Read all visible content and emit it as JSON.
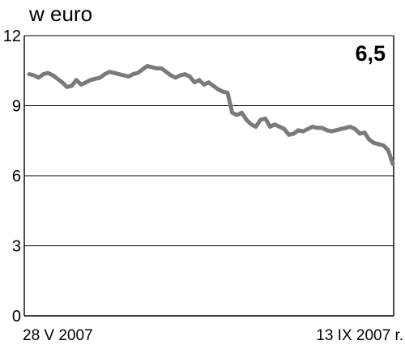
{
  "chart_data": {
    "type": "line",
    "unit_label": "w euro",
    "last_value_label": "6,5",
    "x_start_label": "28 V 2007",
    "x_end_label": "13 IX 2007 r.",
    "ylim": [
      0,
      12
    ],
    "y_ticks": [
      {
        "value": 12,
        "label": "12"
      },
      {
        "value": 9,
        "label": "9"
      },
      {
        "value": 6,
        "label": "6"
      },
      {
        "value": 3,
        "label": "3"
      },
      {
        "value": 0,
        "label": "0"
      }
    ],
    "grid": true,
    "series": [
      {
        "color": "#7a7a7a",
        "values": [
          10.35,
          10.3,
          10.2,
          10.35,
          10.4,
          10.3,
          10.15,
          10.0,
          9.8,
          9.85,
          10.1,
          9.9,
          10.0,
          10.1,
          10.15,
          10.2,
          10.35,
          10.45,
          10.4,
          10.35,
          10.3,
          10.25,
          10.35,
          10.4,
          10.55,
          10.7,
          10.65,
          10.6,
          10.6,
          10.45,
          10.3,
          10.2,
          10.3,
          10.35,
          10.25,
          10.0,
          10.1,
          9.9,
          10.0,
          9.85,
          9.7,
          9.6,
          9.55,
          8.7,
          8.6,
          8.7,
          8.4,
          8.2,
          8.1,
          8.4,
          8.45,
          8.1,
          8.2,
          8.1,
          8.0,
          7.75,
          7.8,
          7.95,
          7.9,
          8.0,
          8.1,
          8.05,
          8.05,
          7.95,
          7.9,
          7.95,
          8.0,
          8.05,
          8.1,
          8.0,
          7.8,
          7.85,
          7.55,
          7.4,
          7.35,
          7.3,
          7.1,
          6.5
        ]
      }
    ]
  }
}
